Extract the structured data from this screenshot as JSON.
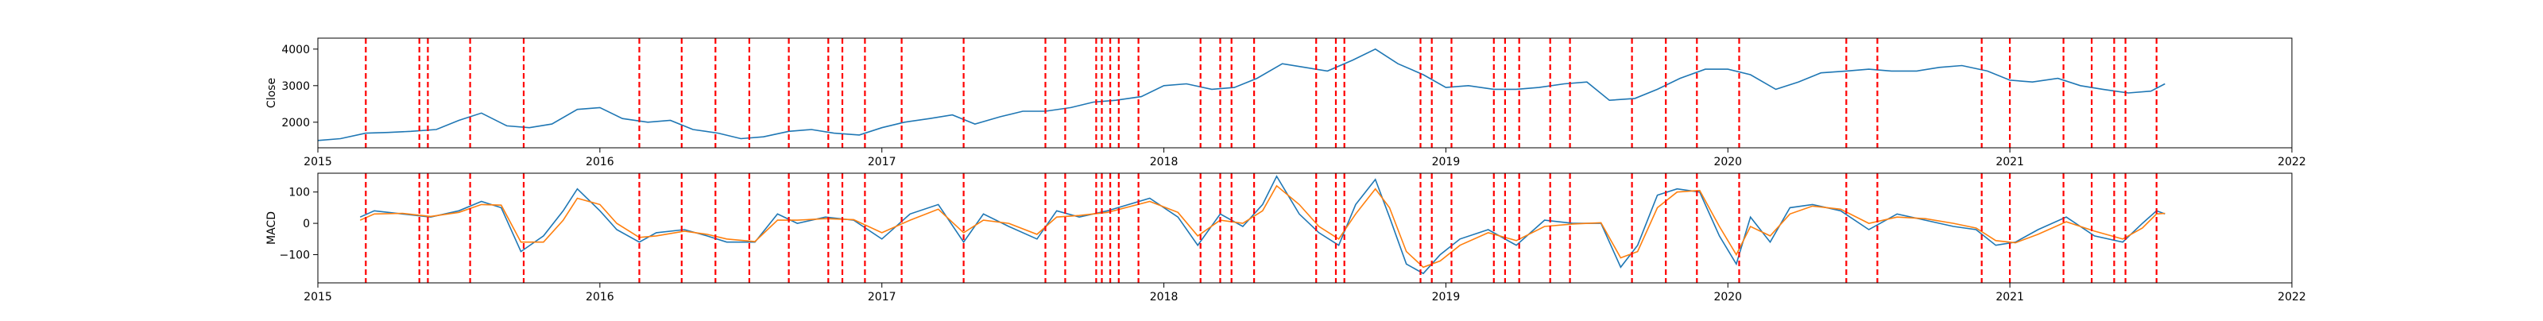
{
  "chart_data": [
    {
      "type": "line",
      "title": "",
      "xlabel": "",
      "ylabel": "Close",
      "xlim": [
        2015,
        2022
      ],
      "ylim": [
        1300,
        4300
      ],
      "xticks": [
        2015,
        2016,
        2017,
        2018,
        2019,
        2020,
        2021,
        2022
      ],
      "xtick_labels": [
        "2015",
        "2016",
        "2017",
        "2018",
        "2019",
        "2020",
        "2021",
        "2022"
      ],
      "yticks": [
        2000,
        3000,
        4000
      ],
      "ytick_labels": [
        "2000",
        "3000",
        "4000"
      ],
      "grid": false,
      "series": [
        {
          "color": "#1f77b4",
          "x": [
            2015.0,
            2015.08,
            2015.17,
            2015.25,
            2015.33,
            2015.42,
            2015.5,
            2015.58,
            2015.67,
            2015.75,
            2015.83,
            2015.92,
            2016.0,
            2016.08,
            2016.17,
            2016.25,
            2016.33,
            2016.42,
            2016.5,
            2016.58,
            2016.67,
            2016.75,
            2016.83,
            2016.92,
            2017.0,
            2017.08,
            2017.17,
            2017.25,
            2017.33,
            2017.42,
            2017.5,
            2017.58,
            2017.67,
            2017.75,
            2017.83,
            2017.92,
            2018.0,
            2018.08,
            2018.17,
            2018.25,
            2018.33,
            2018.42,
            2018.5,
            2018.58,
            2018.67,
            2018.75,
            2018.83,
            2018.92,
            2019.0,
            2019.08,
            2019.17,
            2019.25,
            2019.33,
            2019.42,
            2019.5,
            2019.58,
            2019.67,
            2019.75,
            2019.83,
            2019.92,
            2020.0,
            2020.08,
            2020.17,
            2020.25,
            2020.33,
            2020.42,
            2020.5,
            2020.58,
            2020.67,
            2020.75,
            2020.83,
            2020.92,
            2021.0,
            2021.08,
            2021.17,
            2021.25,
            2021.33,
            2021.42,
            2021.5,
            2021.55
          ],
          "values": [
            1500,
            1550,
            1700,
            1720,
            1750,
            1800,
            2050,
            2250,
            1900,
            1850,
            1950,
            2350,
            2400,
            2100,
            2000,
            2050,
            1800,
            1700,
            1550,
            1600,
            1750,
            1800,
            1700,
            1650,
            1850,
            2000,
            2100,
            2200,
            1950,
            2150,
            2300,
            2300,
            2400,
            2550,
            2600,
            2700,
            3000,
            3050,
            2900,
            2950,
            3200,
            3600,
            3500,
            3400,
            3700,
            4000,
            3600,
            3300,
            2950,
            3000,
            2900,
            2900,
            2950,
            3050,
            3100,
            2600,
            2650,
            2900,
            3200,
            3450,
            3450,
            3300,
            2900,
            3100,
            3350,
            3400,
            3450,
            3400,
            3400,
            3500,
            3550,
            3400,
            3150,
            3100,
            3200,
            3000,
            2900,
            2800,
            2850,
            3050
          ]
        }
      ],
      "vlines": [
        2015.17,
        2015.36,
        2015.39,
        2015.54,
        2015.73,
        2016.14,
        2016.29,
        2016.41,
        2016.53,
        2016.67,
        2016.81,
        2016.86,
        2016.94,
        2017.07,
        2017.29,
        2017.58,
        2017.65,
        2017.76,
        2017.78,
        2017.81,
        2017.84,
        2017.91,
        2018.13,
        2018.2,
        2018.24,
        2018.32,
        2018.54,
        2018.61,
        2018.64,
        2018.91,
        2018.95,
        2019.02,
        2019.17,
        2019.21,
        2019.26,
        2019.37,
        2019.44,
        2019.66,
        2019.78,
        2019.89,
        2020.04,
        2020.42,
        2020.53,
        2020.9,
        2021.0,
        2021.19,
        2021.29,
        2021.37,
        2021.41,
        2021.52
      ]
    },
    {
      "type": "line",
      "title": "",
      "xlabel": "",
      "ylabel": "MACD",
      "xlim": [
        2015,
        2022
      ],
      "ylim": [
        -190,
        160
      ],
      "xticks": [
        2015,
        2016,
        2017,
        2018,
        2019,
        2020,
        2021,
        2022
      ],
      "xtick_labels": [
        "2015",
        "2016",
        "2017",
        "2018",
        "2019",
        "2020",
        "2021",
        "2022"
      ],
      "yticks": [
        -100,
        0,
        100
      ],
      "ytick_labels": [
        "−100",
        "0",
        "100"
      ],
      "grid": false,
      "series": [
        {
          "color": "#1f77b4",
          "x": [
            2015.15,
            2015.2,
            2015.3,
            2015.4,
            2015.5,
            2015.58,
            2015.65,
            2015.72,
            2015.8,
            2015.87,
            2015.92,
            2016.0,
            2016.06,
            2016.14,
            2016.2,
            2016.3,
            2016.38,
            2016.45,
            2016.55,
            2016.63,
            2016.7,
            2016.8,
            2016.9,
            2017.0,
            2017.1,
            2017.2,
            2017.29,
            2017.36,
            2017.45,
            2017.55,
            2017.62,
            2017.7,
            2017.8,
            2017.95,
            2018.05,
            2018.12,
            2018.2,
            2018.28,
            2018.35,
            2018.4,
            2018.48,
            2018.55,
            2018.62,
            2018.68,
            2018.75,
            2018.8,
            2018.86,
            2018.92,
            2018.98,
            2019.05,
            2019.15,
            2019.25,
            2019.35,
            2019.45,
            2019.55,
            2019.62,
            2019.68,
            2019.75,
            2019.82,
            2019.9,
            2019.97,
            2020.03,
            2020.08,
            2020.15,
            2020.22,
            2020.3,
            2020.4,
            2020.5,
            2020.6,
            2020.7,
            2020.8,
            2020.88,
            2020.95,
            2021.02,
            2021.1,
            2021.2,
            2021.3,
            2021.4,
            2021.47,
            2021.52,
            2021.55
          ],
          "values": [
            20,
            40,
            30,
            20,
            40,
            70,
            50,
            -90,
            -40,
            40,
            110,
            40,
            -20,
            -60,
            -30,
            -20,
            -40,
            -60,
            -60,
            30,
            0,
            20,
            10,
            -50,
            30,
            60,
            -60,
            30,
            -10,
            -50,
            40,
            20,
            40,
            80,
            20,
            -70,
            30,
            -10,
            60,
            150,
            30,
            -30,
            -70,
            60,
            140,
            20,
            -130,
            -160,
            -100,
            -50,
            -20,
            -70,
            10,
            0,
            0,
            -140,
            -70,
            90,
            110,
            100,
            -40,
            -130,
            20,
            -60,
            50,
            60,
            40,
            -20,
            30,
            10,
            -10,
            -20,
            -70,
            -60,
            -20,
            20,
            -40,
            -60,
            0,
            40,
            30
          ]
        },
        {
          "color": "#ff7f0e",
          "x": [
            2015.15,
            2015.2,
            2015.3,
            2015.4,
            2015.5,
            2015.58,
            2015.65,
            2015.72,
            2015.8,
            2015.87,
            2015.92,
            2016.0,
            2016.06,
            2016.14,
            2016.2,
            2016.3,
            2016.38,
            2016.45,
            2016.55,
            2016.63,
            2016.7,
            2016.8,
            2016.9,
            2017.0,
            2017.1,
            2017.2,
            2017.29,
            2017.36,
            2017.45,
            2017.55,
            2017.62,
            2017.7,
            2017.8,
            2017.95,
            2018.05,
            2018.12,
            2018.2,
            2018.28,
            2018.35,
            2018.4,
            2018.48,
            2018.55,
            2018.62,
            2018.68,
            2018.75,
            2018.8,
            2018.86,
            2018.92,
            2018.98,
            2019.05,
            2019.15,
            2019.25,
            2019.35,
            2019.45,
            2019.55,
            2019.62,
            2019.68,
            2019.75,
            2019.82,
            2019.9,
            2019.97,
            2020.03,
            2020.08,
            2020.15,
            2020.22,
            2020.3,
            2020.4,
            2020.5,
            2020.6,
            2020.7,
            2020.8,
            2020.88,
            2020.95,
            2021.02,
            2021.1,
            2021.2,
            2021.3,
            2021.4,
            2021.47,
            2021.52,
            2021.55
          ],
          "values": [
            10,
            30,
            32,
            22,
            35,
            60,
            58,
            -60,
            -60,
            10,
            80,
            60,
            0,
            -45,
            -40,
            -25,
            -35,
            -50,
            -58,
            10,
            10,
            15,
            12,
            -30,
            10,
            45,
            -30,
            10,
            0,
            -35,
            20,
            25,
            35,
            70,
            35,
            -40,
            10,
            0,
            40,
            120,
            60,
            -10,
            -50,
            30,
            110,
            50,
            -90,
            -140,
            -120,
            -70,
            -30,
            -55,
            -10,
            -2,
            2,
            -110,
            -90,
            50,
            100,
            105,
            -10,
            -100,
            -10,
            -40,
            30,
            55,
            45,
            0,
            20,
            15,
            0,
            -15,
            -55,
            -62,
            -35,
            5,
            -25,
            -50,
            -15,
            30,
            32
          ]
        }
      ],
      "vlines": [
        2015.17,
        2015.36,
        2015.39,
        2015.54,
        2015.73,
        2016.14,
        2016.29,
        2016.41,
        2016.53,
        2016.67,
        2016.81,
        2016.86,
        2016.94,
        2017.07,
        2017.29,
        2017.58,
        2017.65,
        2017.76,
        2017.78,
        2017.81,
        2017.84,
        2017.91,
        2018.13,
        2018.2,
        2018.24,
        2018.32,
        2018.54,
        2018.61,
        2018.64,
        2018.91,
        2018.95,
        2019.02,
        2019.17,
        2019.21,
        2019.26,
        2019.37,
        2019.44,
        2019.66,
        2019.78,
        2019.89,
        2020.04,
        2020.42,
        2020.53,
        2020.9,
        2021.0,
        2021.19,
        2021.29,
        2021.37,
        2021.41,
        2021.52
      ]
    }
  ]
}
